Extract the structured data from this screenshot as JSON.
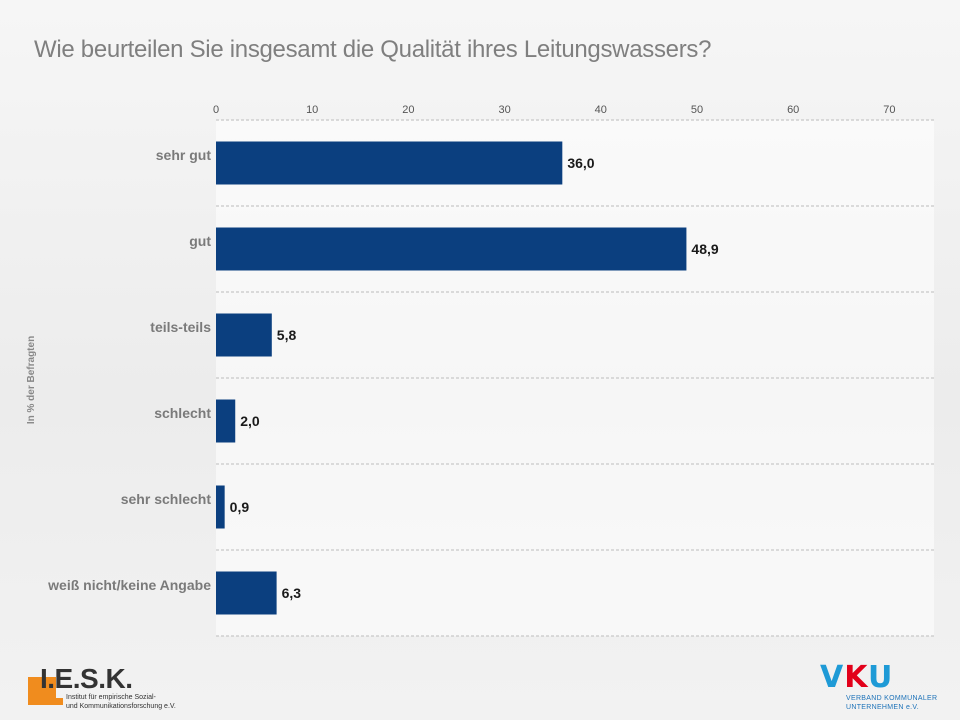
{
  "title": "Wie beurteilen Sie insgesamt die Qualität ihres Leitungswassers?",
  "chart_data": {
    "type": "bar",
    "orientation": "horizontal",
    "categories": [
      "sehr gut",
      "gut",
      "teils-teils",
      "schlecht",
      "sehr schlecht",
      "weiß nicht/keine Angabe"
    ],
    "values": [
      36.0,
      48.9,
      5.8,
      2.0,
      0.9,
      6.3
    ],
    "value_labels": [
      "36,0",
      "48,9",
      "5,8",
      "2,0",
      "0,9",
      "6,3"
    ],
    "xlim": [
      0,
      75
    ],
    "xticks": [
      0,
      10,
      20,
      30,
      40,
      50,
      60,
      70
    ],
    "ylabel": "In % der Befragten",
    "bar_color": "#0b3f7f",
    "grid": "horizontal-dashed"
  },
  "logos": {
    "iesk": {
      "name": "I.E.S.K.",
      "line1": "Institut für empirische Sozial-",
      "line2": "und Kommunikationsforschung e.V.",
      "color": "#f08c1e"
    },
    "vku": {
      "letters": [
        "V",
        "K",
        "U"
      ],
      "line1": "VERBAND KOMMUNALER",
      "line2": "UNTERNEHMEN e.V.",
      "color_blue": "#1e9ad6",
      "color_red": "#e2001a"
    }
  }
}
